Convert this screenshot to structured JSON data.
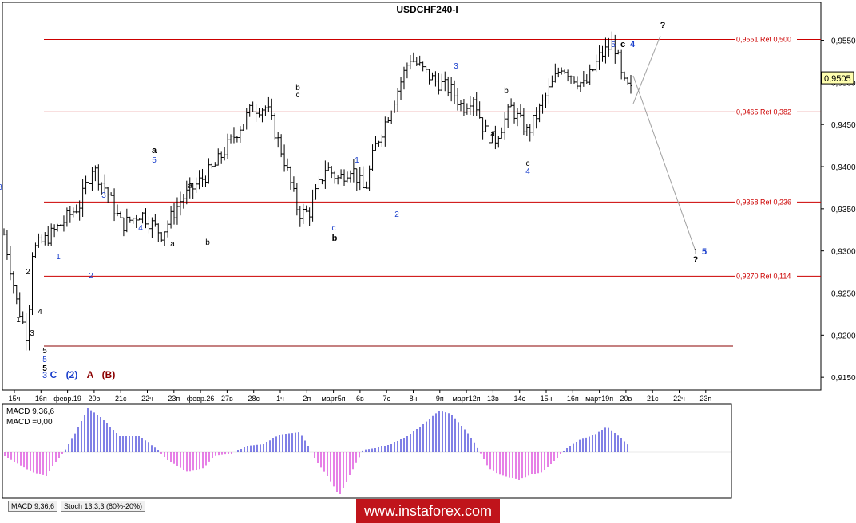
{
  "chart_data": {
    "type": "candlestick",
    "title": "USDCHF240-I",
    "current_price": "0,9505",
    "ylim": [
      0.9135,
      0.9595
    ],
    "y_ticks": [
      "0,9550",
      "0,9500",
      "0,9450",
      "0,9400",
      "0,9350",
      "0,9300",
      "0,9250",
      "0,9200",
      "0,9150"
    ],
    "x_ticks": [
      "15ч",
      "16п",
      "февр.19",
      "20в",
      "21с",
      "22ч",
      "23п",
      "февр.26",
      "27в",
      "28с",
      "1ч",
      "2п",
      "март5п",
      "6в",
      "7с",
      "8ч",
      "9п",
      "март12п",
      "13в",
      "14с",
      "15ч",
      "16п",
      "март19п",
      "20в",
      "21с",
      "22ч",
      "23п"
    ],
    "retracement_levels": [
      {
        "label": "0,9551 Ret 0,500",
        "value": 0.9551
      },
      {
        "label": "0,9465 Ret 0,382",
        "value": 0.9465
      },
      {
        "label": "0,9358 Ret 0,236",
        "value": 0.9358
      },
      {
        "label": "0,9270 Ret 0,114",
        "value": 0.927
      }
    ],
    "maroon_level": 0.9187,
    "wave_labels": [
      "1",
      "2",
      "3",
      "4",
      "5",
      "a",
      "b",
      "c",
      "C",
      "(2)",
      "A",
      "(B)",
      "?"
    ],
    "macd": {
      "label": "MACD 9,36,6",
      "value_label": "MACD =0,00"
    },
    "indicator_tabs": [
      "MACD 9,36,6",
      "Stoch 13,3,3 (80%-20%)"
    ],
    "colors": {
      "fib_line": "#cc0000",
      "maroon_line": "#8b0000",
      "macd_positive": "#0000cc",
      "macd_negative": "#cc00cc",
      "wave_blue": "#1a3fcc",
      "wave_black": "#000000",
      "wave_maroon": "#8b0000",
      "projection_line": "#a0a0a0"
    }
  },
  "brand": "www.instaforex.com"
}
